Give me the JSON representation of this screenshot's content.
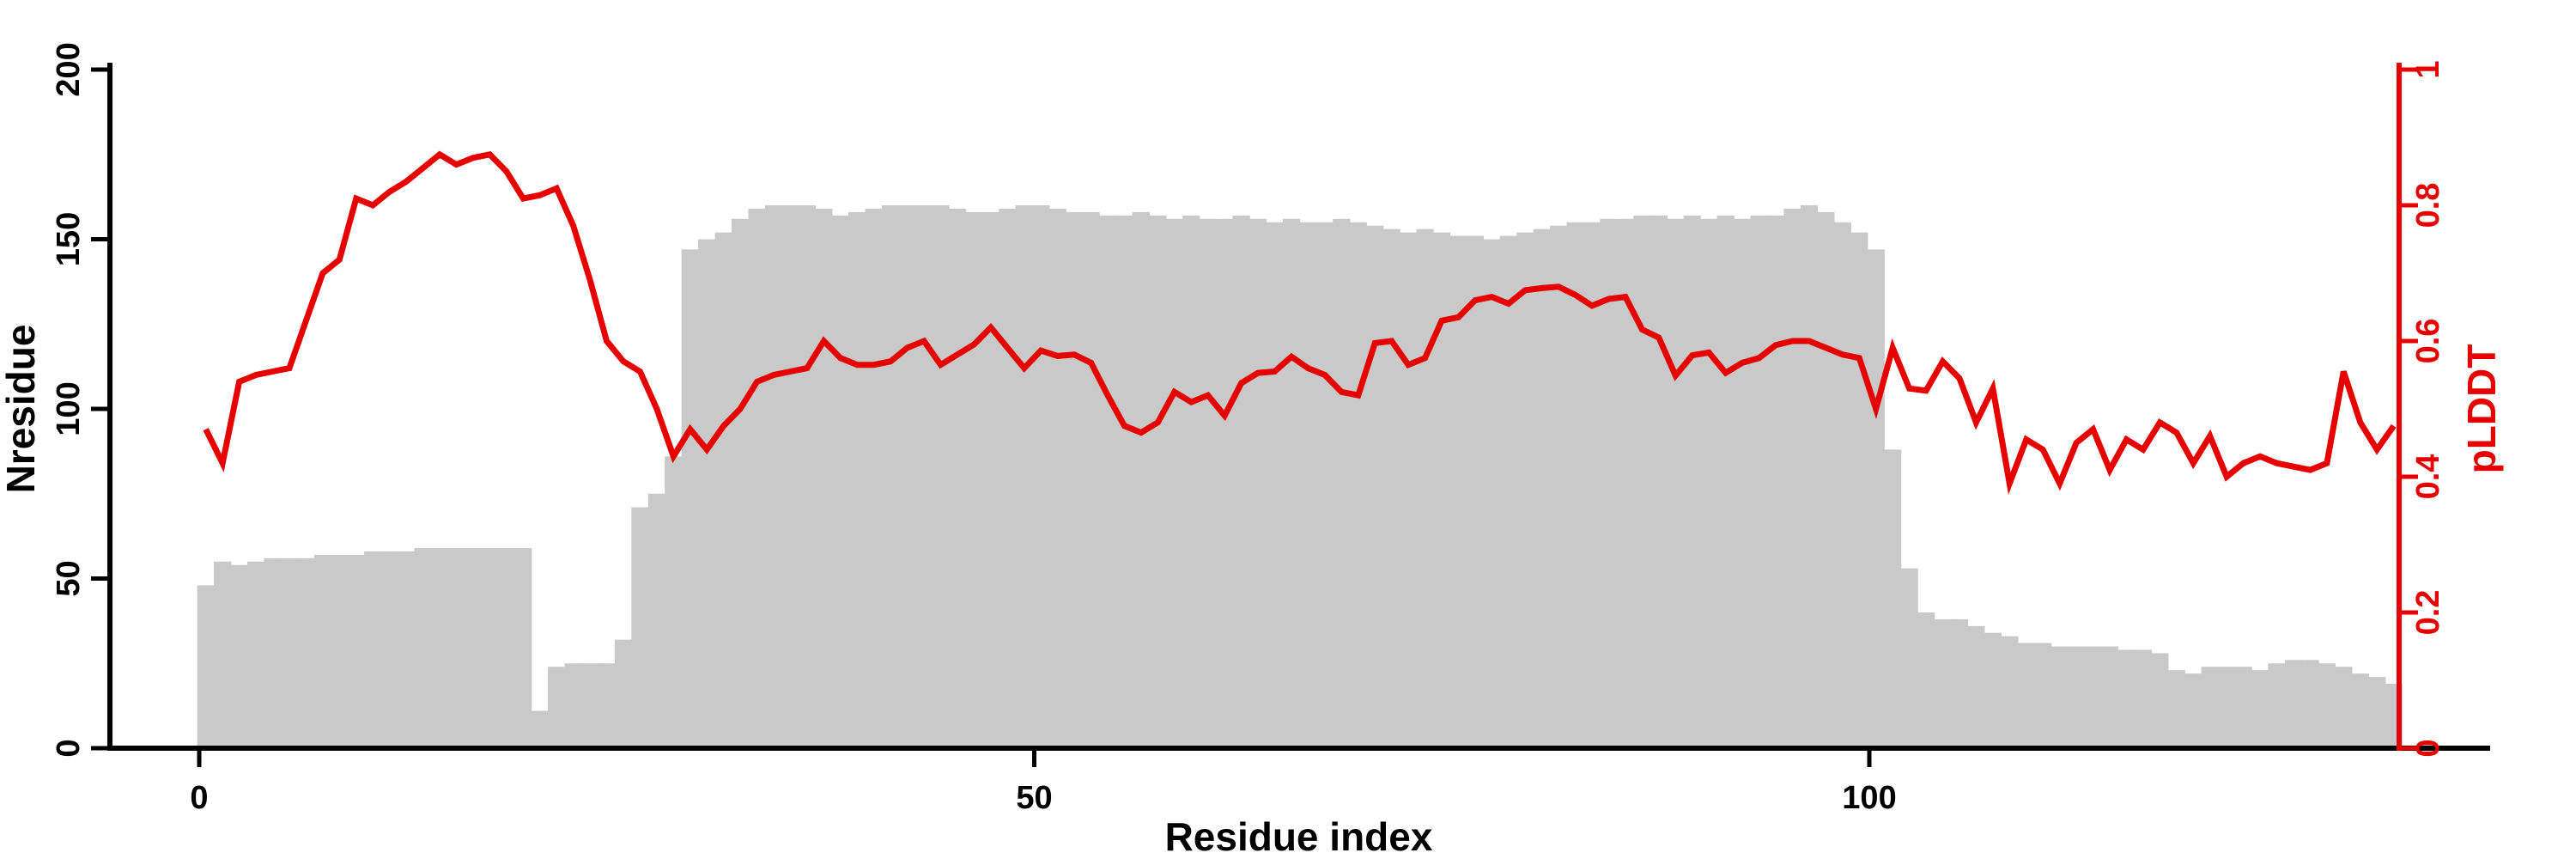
{
  "figure": {
    "background": "#ffffff",
    "bar_color": "#c9c9c9",
    "line_color": "#e60000",
    "axis_color": "#000000",
    "right_axis_color": "#e60000"
  },
  "chart_data": {
    "type": "bar",
    "subtype": "dual-axis bar+line",
    "title": "",
    "xlabel": "Residue index",
    "ylabel_left": "Nresidue",
    "ylabel_right": "pLDDT",
    "x_ticks": [
      0,
      50,
      100
    ],
    "y_ticks_left": [
      0,
      50,
      100,
      150,
      200
    ],
    "y_ticks_right": [
      0,
      0.2,
      0.4,
      0.6,
      0.8,
      1
    ],
    "ylim_left": [
      0,
      200
    ],
    "ylim_right": [
      0,
      1
    ],
    "x_range": [
      0,
      131
    ],
    "grid": false,
    "legend_position": "none",
    "series": [
      {
        "name": "Nresidue",
        "type": "bar",
        "axis": "left",
        "color": "#c9c9c9",
        "values": [
          48,
          55,
          54,
          55,
          56,
          56,
          56,
          57,
          57,
          57,
          58,
          58,
          58,
          59,
          59,
          59,
          59,
          59,
          59,
          59,
          11,
          24,
          25,
          25,
          25,
          32,
          71,
          75,
          86,
          147,
          150,
          152,
          156,
          159,
          160,
          160,
          160,
          159,
          157,
          158,
          159,
          160,
          160,
          160,
          160,
          159,
          158,
          158,
          159,
          160,
          160,
          159,
          158,
          158,
          157,
          157,
          158,
          157,
          156,
          157,
          156,
          156,
          157,
          156,
          155,
          156,
          155,
          155,
          156,
          155,
          154,
          153,
          152,
          153,
          152,
          151,
          151,
          150,
          151,
          152,
          153,
          154,
          155,
          155,
          156,
          156,
          157,
          157,
          156,
          157,
          156,
          157,
          156,
          157,
          157,
          159,
          160,
          158,
          155,
          152,
          147,
          88,
          53,
          40,
          38,
          38,
          36,
          34,
          33,
          31,
          31,
          30,
          30,
          30,
          30,
          29,
          29,
          28,
          23,
          22,
          24,
          24,
          24,
          23,
          25,
          26,
          26,
          25,
          24,
          22,
          21,
          19
        ]
      },
      {
        "name": "pLDDT",
        "type": "line",
        "axis": "right",
        "color": "#e60000",
        "values": [
          0.47,
          0.42,
          0.54,
          0.55,
          0.555,
          0.56,
          0.63,
          0.7,
          0.72,
          0.81,
          0.8,
          0.82,
          0.835,
          0.855,
          0.875,
          0.86,
          0.87,
          0.875,
          0.85,
          0.81,
          0.815,
          0.825,
          0.77,
          0.69,
          0.6,
          0.57,
          0.555,
          0.5,
          0.43,
          0.47,
          0.44,
          0.475,
          0.5,
          0.54,
          0.55,
          0.555,
          0.56,
          0.6,
          0.575,
          0.565,
          0.565,
          0.57,
          0.59,
          0.6,
          0.565,
          0.58,
          0.595,
          0.62,
          0.59,
          0.56,
          0.586,
          0.578,
          0.58,
          0.568,
          0.52,
          0.475,
          0.465,
          0.48,
          0.525,
          0.51,
          0.52,
          0.49,
          0.538,
          0.553,
          0.555,
          0.577,
          0.56,
          0.55,
          0.525,
          0.52,
          0.597,
          0.6,
          0.565,
          0.575,
          0.63,
          0.635,
          0.66,
          0.665,
          0.655,
          0.675,
          0.678,
          0.68,
          0.668,
          0.652,
          0.662,
          0.665,
          0.617,
          0.605,
          0.549,
          0.579,
          0.583,
          0.553,
          0.568,
          0.575,
          0.594,
          0.6,
          0.6,
          0.59,
          0.58,
          0.575,
          0.5,
          0.59,
          0.53,
          0.527,
          0.57,
          0.545,
          0.48,
          0.53,
          0.39,
          0.455,
          0.44,
          0.39,
          0.45,
          0.47,
          0.41,
          0.455,
          0.44,
          0.48,
          0.465,
          0.42,
          0.46,
          0.4,
          0.42,
          0.43,
          0.42,
          0.415,
          0.41,
          0.42,
          0.555,
          0.48,
          0.44,
          0.475
        ]
      }
    ]
  }
}
